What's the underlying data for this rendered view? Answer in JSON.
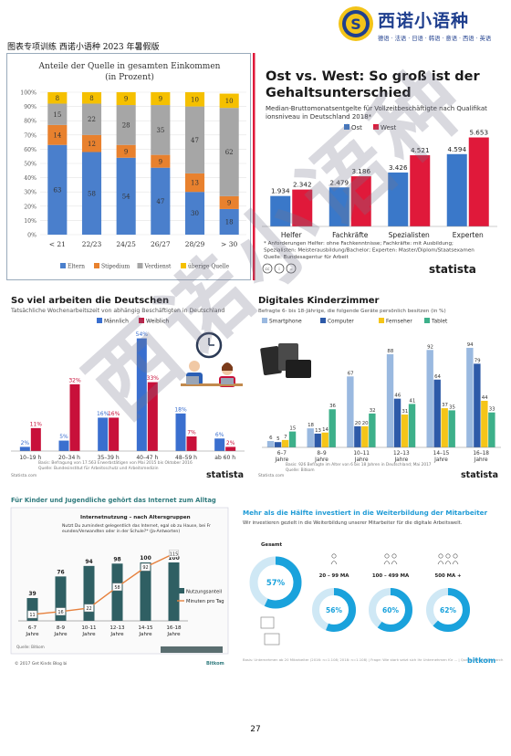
{
  "header": {
    "title": "图表专项训练  西诺小语种  2023 年暑假版",
    "brand_name": "西诺小语种",
    "brand_sub": "德语 · 法语 · 日语 · 韩语 · 意语 · 西语 · 英语",
    "logo_letter": "S"
  },
  "page_number": "27",
  "watermark": "西诺小语种",
  "chart_data": [
    {
      "id": "einkommen",
      "type": "bar",
      "stacked": true,
      "title": "Anteile der Quelle in gesamten Einkommen",
      "subtitle": "(in Prozent)",
      "categories": [
        "< 21",
        "22/23",
        "24/25",
        "26/27",
        "28/29",
        "> 30"
      ],
      "series": [
        {
          "name": "Eltern",
          "values": [
            63,
            58,
            54,
            47,
            30,
            18
          ],
          "color": "#4a7fcc"
        },
        {
          "name": "Stipedium",
          "values": [
            14,
            12,
            9,
            9,
            13,
            9
          ],
          "color": "#e8812e"
        },
        {
          "name": "Verdienst",
          "values": [
            15,
            22,
            28,
            35,
            47,
            62
          ],
          "color": "#a6a6a6"
        },
        {
          "name": "überige Quelle",
          "values": [
            8,
            8,
            9,
            9,
            10,
            10
          ],
          "color": "#f5c000"
        }
      ],
      "yticks": [
        "0%",
        "10%",
        "20%",
        "30%",
        "40%",
        "50%",
        "60%",
        "70%",
        "80%",
        "90%",
        "100%"
      ],
      "ylim": [
        0,
        100
      ]
    },
    {
      "id": "gehalt",
      "type": "bar",
      "title": "Ost vs. West: So groß ist der Gehaltsunterschied",
      "subtitle": "Median-Bruttomonatsentgelte für Vollzeitbeschäftigte nach Qualifikationsniveau in Deutschland 2018*",
      "categories": [
        "Helfer",
        "Fachkräfte",
        "Spezialisten",
        "Experten"
      ],
      "series": [
        {
          "name": "Ost",
          "values": [
            1934,
            2479,
            3426,
            4594
          ],
          "labels": [
            "1.934",
            "2.479",
            "3.426",
            "4.594"
          ],
          "color": "#3a78c9"
        },
        {
          "name": "West",
          "values": [
            2342,
            3186,
            4521,
            5653
          ],
          "labels": [
            "2.342",
            "3.186",
            "4.521",
            "5.653"
          ],
          "color": "#e0193a"
        }
      ],
      "ylim": [
        0,
        5800
      ],
      "notes": [
        "* Anforderungen Helfer: ohne Fachkenntnisse; Fachkräfte: mit Ausbildung;",
        "  Spezialisten: Meisterausbildung/Bachelor; Experten: Master/Diplom/Staatsexamen",
        "Quelle: Bundesagentur für Arbeit"
      ],
      "brand": "statista"
    },
    {
      "id": "arbeitszeit",
      "type": "bar",
      "title": "So viel arbeiten die Deutschen",
      "subtitle": "Tatsächliche Wochenarbeitszeit von abhängig Beschäftigten in Deutschland",
      "categories": [
        "10–19 h",
        "20–34 h",
        "35–39 h",
        "40–47 h",
        "48–59 h",
        "ab 60 h"
      ],
      "series": [
        {
          "name": "Männlich",
          "values": [
            2,
            5,
            16,
            54,
            18,
            6
          ],
          "labels": [
            "2%",
            "5%",
            "16%",
            "54%",
            "18%",
            "6%"
          ],
          "color": "#3a6fcf"
        },
        {
          "name": "Weiblich",
          "values": [
            11,
            32,
            16,
            33,
            7,
            2
          ],
          "labels": [
            "11%",
            "32%",
            "16%",
            "33%",
            "7%",
            "2%"
          ],
          "color": "#c8103a"
        }
      ],
      "ylim": [
        0,
        56
      ],
      "notes": [
        "Basis: Befragung von 17.563 Erwerbstätigen von Mai 2015 bis Oktober 2016",
        "Quelle: Bundesinstitut für Arbeitsschutz und Arbeitsmedizin"
      ],
      "brand": "statista",
      "footer_left": "Statista.com"
    },
    {
      "id": "kinderzimmer",
      "type": "bar",
      "title": "Digitales Kinderzimmer",
      "subtitle": "Befragte 6- bis 18-Jährige, die folgende Geräte persönlich besitzen (in %)",
      "categories": [
        "6–7 Jahre",
        "8–9 Jahre",
        "10–11 Jahre",
        "12–13 Jahre",
        "14–15 Jahre",
        "16–18 Jahre"
      ],
      "series": [
        {
          "name": "Smartphone",
          "values": [
            6,
            18,
            67,
            88,
            92,
            94
          ],
          "color": "#9ab9e0"
        },
        {
          "name": "Computer",
          "values": [
            5,
            13,
            20,
            46,
            64,
            79
          ],
          "color": "#2d5aa8"
        },
        {
          "name": "Fernseher",
          "values": [
            7,
            14,
            20,
            31,
            37,
            44
          ],
          "color": "#f5c518"
        },
        {
          "name": "Tablet",
          "values": [
            15,
            36,
            32,
            41,
            35,
            33
          ],
          "color": "#3db08a"
        }
      ],
      "ylim": [
        0,
        100
      ],
      "notes": [
        "Basis: 926 Befragte im Alter von 6 bis 18 Jahren in Deutschland; Mai 2017",
        "Quelle: Bitkom"
      ],
      "brand": "statista",
      "footer_left": "Statista.com"
    },
    {
      "id": "internet",
      "type": "bar",
      "title": "Für Kinder und Jugendliche gehört das Internet zum Alltag",
      "subtitle": "Internetnutzung – nach Altersgruppen",
      "question": "Nutzt Du zumindest gelegentlich das Internet, egal ob zu Hause, bei Freunden/Verwandten oder in der Schule?* (Ja-Antworten)",
      "categories": [
        "6-7 Jahre",
        "8-9 Jahre",
        "10-11 Jahre",
        "12-13 Jahre",
        "14-15 Jahre",
        "16-18 Jahre"
      ],
      "series": [
        {
          "name": "Nutzungsanteil",
          "values": [
            39,
            76,
            94,
            98,
            100,
            100
          ],
          "color": "#2f5f63"
        },
        {
          "name": "Minuten pro Tag",
          "values": [
            11,
            16,
            22,
            58,
            92,
            115
          ],
          "color": "#e6813d"
        }
      ],
      "ylim": [
        0,
        125
      ],
      "notes": [
        "Quelle: Bitkom"
      ],
      "footer_left": "© 2017 Get Kinds Blog bi",
      "footer_right": "Bitkom"
    },
    {
      "id": "weiterbildung",
      "type": "pie",
      "title": "Mehr als die Hälfte investiert in die Weiterbildung der Mitarbeiter",
      "subtitle": "Wir investieren gezielt in die Weiterbildung unserer Mitarbeiter für die digitale Arbeitswelt.",
      "groups": [
        {
          "name": "Gesamt",
          "value": 57,
          "label": "57%"
        },
        {
          "name": "20 – 99 MA",
          "value": 56,
          "label": "56%"
        },
        {
          "name": "100 – 499 MA",
          "value": 60,
          "label": "60%"
        },
        {
          "name": "500 MA +",
          "value": 62,
          "label": "62%"
        }
      ],
      "colors": {
        "fill": "#1aa2dc",
        "track": "#cfe8f5"
      },
      "notes": [
        "Basis: Unternehmen ab 20 Mitarbeiter (2016: n=1.108; 2018: n=1.108) | Frage: Wie stark setzt sich Ihr Unternehmen für ... | Quelle: Bitkom Research"
      ],
      "brand": "bitkom"
    }
  ]
}
